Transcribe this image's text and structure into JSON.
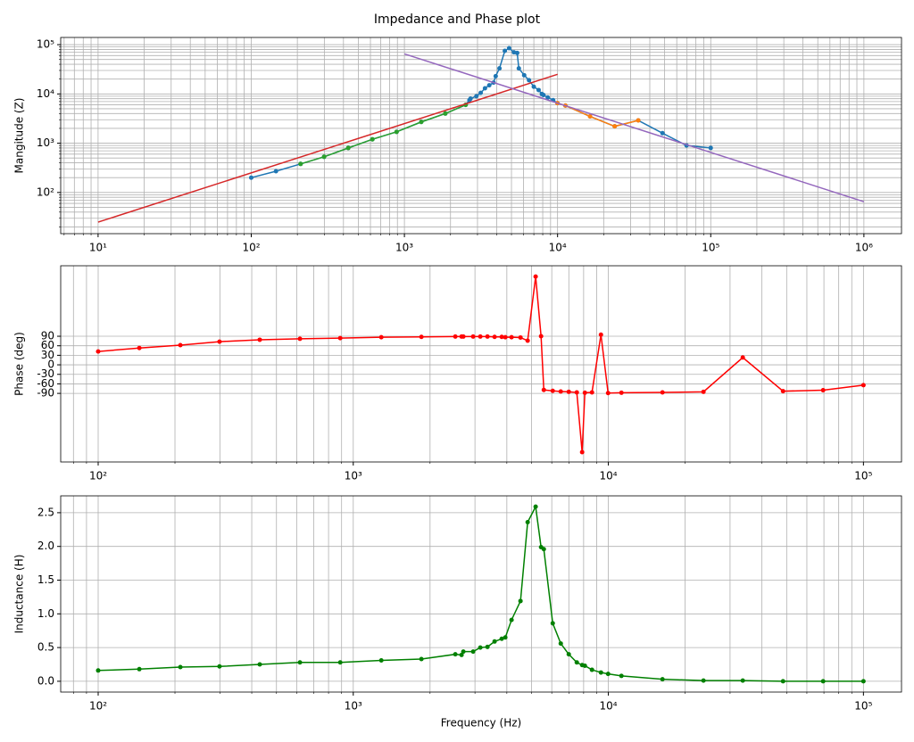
{
  "title": "Impedance and Phase plot",
  "chart_data": [
    {
      "type": "line",
      "ylabel": "Mangitude (Z)",
      "xscale": "log",
      "yscale": "log",
      "grid": true,
      "minor_grid": "both",
      "xlim": [
        5.7,
        1760000
      ],
      "ylim": [
        14.6,
        140000
      ],
      "xticks": [
        {
          "value": 10,
          "label": "10¹"
        },
        {
          "value": 100,
          "label": "10²"
        },
        {
          "value": 1000,
          "label": "10³"
        },
        {
          "value": 10000,
          "label": "10⁴"
        },
        {
          "value": 100000,
          "label": "10⁵"
        },
        {
          "value": 1000000,
          "label": "10⁶"
        }
      ],
      "yticks": [
        {
          "value": 100,
          "label": "10²"
        },
        {
          "value": 1000,
          "label": "10³"
        },
        {
          "value": 10000,
          "label": "10⁴"
        },
        {
          "value": 100000,
          "label": "10⁵"
        }
      ],
      "series": [
        {
          "color": "#1f77b4",
          "marker": true,
          "x": [
            100,
            145,
            210,
            299,
            430,
            618,
            889,
            1288,
            1850,
            2512,
            2658,
            2701,
            2951,
            3148,
            3358,
            3581,
            3820,
            3945,
            4174,
            4525,
            4827,
            5188,
            5448,
            5585,
            6053,
            6508,
            6996,
            7522,
            7893,
            8090,
            8627,
            9354,
            9977,
            11253,
            16300,
            23600,
            33650,
            48400,
            69500,
            100000
          ],
          "values": [
            200,
            270,
            380,
            530,
            800,
            1200,
            1700,
            2700,
            4000,
            6000,
            7500,
            8000,
            9000,
            10500,
            13000,
            15000,
            17000,
            23000,
            33000,
            75000,
            85000,
            70000,
            68000,
            33000,
            24000,
            19000,
            14000,
            12000,
            10000,
            9500,
            8500,
            7500,
            6500,
            5800,
            3500,
            2200,
            2900,
            1600,
            900,
            800
          ]
        },
        {
          "color": "#ff7f0e",
          "marker": true,
          "x": [
            9977,
            11253,
            16300,
            23600,
            33650
          ],
          "values": [
            6500,
            5800,
            3500,
            2200,
            2900
          ]
        },
        {
          "color": "#2ca02c",
          "marker": true,
          "x": [
            210,
            299,
            430,
            618,
            889,
            1288,
            1850,
            2512
          ],
          "values": [
            380,
            530,
            800,
            1200,
            1700,
            2700,
            4000,
            6000
          ]
        },
        {
          "color": "#d62728",
          "marker": false,
          "x": [
            10,
            10000
          ],
          "values": [
            25,
            25000
          ]
        },
        {
          "color": "#9467bd",
          "marker": false,
          "x": [
            1000,
            1000000
          ],
          "values": [
            65000,
            65
          ]
        }
      ]
    },
    {
      "type": "line",
      "ylabel": "Phase (deg)",
      "xscale": "log",
      "yscale": "linear",
      "grid": true,
      "minor_grid": "x",
      "xlim": [
        71.3,
        141000
      ],
      "ylim": [
        -306,
        312
      ],
      "xticks": [
        {
          "value": 100,
          "label": "10²"
        },
        {
          "value": 1000,
          "label": "10³"
        },
        {
          "value": 10000,
          "label": "10⁴"
        },
        {
          "value": 100000,
          "label": "10⁵"
        }
      ],
      "yticks": [
        -90,
        -60,
        -30,
        0,
        30,
        60,
        90
      ],
      "x": [
        100,
        145,
        210,
        299,
        430,
        618,
        889,
        1288,
        1850,
        2512,
        2658,
        2701,
        2951,
        3148,
        3358,
        3581,
        3820,
        3945,
        4174,
        4525,
        4827,
        5188,
        5448,
        5585,
        6053,
        6508,
        6996,
        7522,
        7893,
        8090,
        8627,
        9354,
        9977,
        11253,
        16300,
        23600,
        33650,
        48400,
        69500,
        100000
      ],
      "series": [
        {
          "color": "#ff0000",
          "marker": true,
          "values": [
            42,
            53,
            62,
            73,
            79,
            82,
            84,
            87,
            88,
            89,
            89,
            89,
            89,
            89,
            89,
            88,
            88,
            87,
            87,
            86,
            76,
            278,
            90,
            -79,
            -82,
            -84,
            -85,
            -87,
            -275,
            -88,
            -87,
            95,
            -89,
            -88,
            -87,
            -85,
            23,
            -83,
            -80,
            -64
          ]
        }
      ]
    },
    {
      "type": "line",
      "ylabel": "Inductance (H)",
      "xlabel": "Frequency (Hz)",
      "xscale": "log",
      "yscale": "linear",
      "grid": true,
      "minor_grid": "x",
      "xlim": [
        71.3,
        141000
      ],
      "ylim": [
        -0.16,
        2.75
      ],
      "xticks": [
        {
          "value": 100,
          "label": "10²"
        },
        {
          "value": 1000,
          "label": "10³"
        },
        {
          "value": 10000,
          "label": "10⁴"
        },
        {
          "value": 100000,
          "label": "10⁵"
        }
      ],
      "yticks": [
        {
          "value": 0,
          "label": "0.0"
        },
        0.5,
        {
          "value": 1,
          "label": "1.0"
        },
        1.5,
        {
          "value": 2,
          "label": "2.0"
        },
        2.5
      ],
      "x": [
        100,
        145,
        210,
        299,
        430,
        618,
        889,
        1288,
        1850,
        2512,
        2658,
        2701,
        2951,
        3148,
        3358,
        3581,
        3820,
        3945,
        4174,
        4525,
        4827,
        5188,
        5448,
        5585,
        6053,
        6508,
        6996,
        7522,
        7893,
        8090,
        8627,
        9354,
        9977,
        11253,
        16300,
        23600,
        33650,
        48400,
        69500,
        100000
      ],
      "series": [
        {
          "color": "#008000",
          "marker": true,
          "values": [
            0.16,
            0.18,
            0.21,
            0.22,
            0.25,
            0.28,
            0.28,
            0.31,
            0.33,
            0.4,
            0.39,
            0.44,
            0.44,
            0.5,
            0.51,
            0.59,
            0.63,
            0.65,
            0.91,
            1.19,
            2.36,
            2.59,
            1.99,
            1.96,
            0.86,
            0.56,
            0.4,
            0.28,
            0.24,
            0.23,
            0.17,
            0.13,
            0.11,
            0.08,
            0.03,
            0.01,
            0.01,
            0,
            0,
            0
          ]
        }
      ]
    }
  ]
}
